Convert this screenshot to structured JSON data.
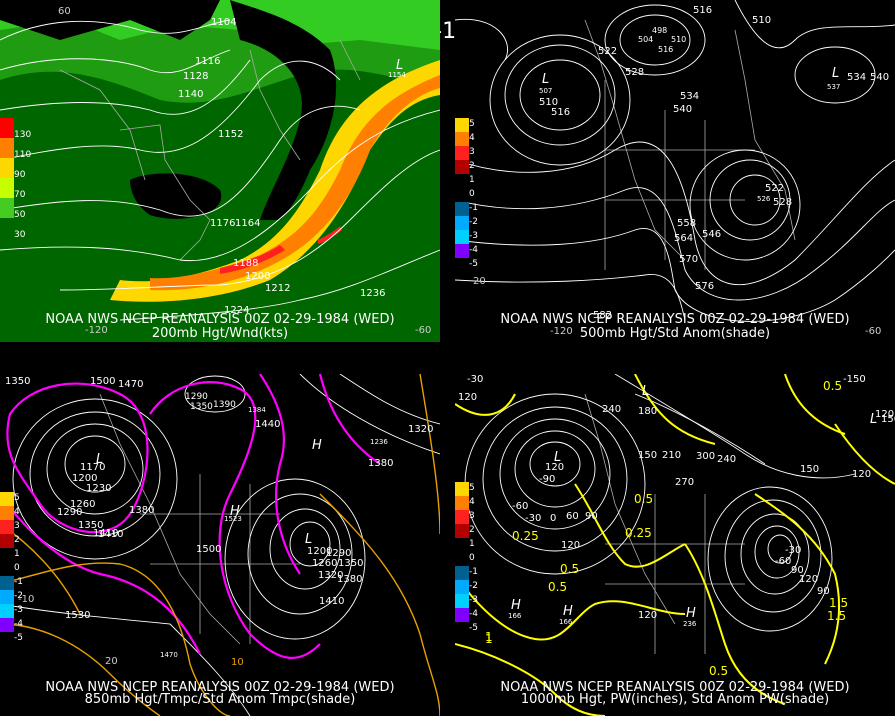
{
  "header": {
    "datetime": "00Z 02-29-1984 (WED)"
  },
  "panels": [
    {
      "id": "p1",
      "caption_line1": "NOAA NWS NCEP REANALYSIS 00Z 02-29-1984 (WED)",
      "caption_line2": "200mb Hgt/Wnd(kts)",
      "legend": [
        "130",
        "110",
        "90",
        "70",
        "50",
        "30"
      ],
      "labels": [
        "1104",
        "1116",
        "1128",
        "1140",
        "1152",
        "1164",
        "1176",
        "1188",
        "1200",
        "1212",
        "1224",
        "1236",
        "L",
        "1154",
        "60",
        "-120",
        "-60"
      ]
    },
    {
      "id": "p2",
      "caption_line1": "NOAA NWS NCEP REANALYSIS 00Z 02-29-1984 (WED)",
      "caption_line2": "500mb Hgt/Std Anom(shade)",
      "legend": [
        "5",
        "4",
        "3",
        "2",
        "1",
        "0",
        "-1",
        "-2",
        "-3",
        "-4",
        "-5"
      ],
      "labels": [
        "516",
        "510",
        "498",
        "504",
        "510",
        "516",
        "522",
        "528",
        "534",
        "540",
        "L",
        "507",
        "510",
        "516",
        "L",
        "534",
        "540",
        "537",
        "522",
        "528",
        "526",
        "558",
        "564",
        "546",
        "570",
        "576",
        "582",
        "20",
        "-120",
        "-60"
      ]
    },
    {
      "id": "p3",
      "caption_line1": "NOAA NWS NCEP REANALYSIS 00Z 02-29-1984 (WED)",
      "caption_line2": "850mb Hgt/Tmpc/Std Anom Tmpc(shade)",
      "legend": [
        "5",
        "4",
        "3",
        "2",
        "1",
        "0",
        "-1",
        "-2",
        "-3",
        "-4",
        "-5"
      ],
      "labels": [
        "1350",
        "1500",
        "1470",
        "1440",
        "1290",
        "1350",
        "1390",
        "1384",
        "1440",
        "1236",
        "1320",
        "1170",
        "1200",
        "1230",
        "1410",
        "1380",
        "1260",
        "1290",
        "1350",
        "1410",
        "1380",
        "1500",
        "1523",
        "1200",
        "1260",
        "1290",
        "1350",
        "1320",
        "1380",
        "1410",
        "1530",
        "1470",
        "10",
        "-10",
        "20",
        "H",
        "L",
        "L",
        "H"
      ]
    },
    {
      "id": "p4",
      "caption_line1": "NOAA NWS NCEP REANALYSIS 00Z 02-29-1984 (WED)",
      "caption_line2": "1000mb Hgt, PW(inches), Std Anom PW(shade)",
      "legend": [
        "5",
        "4",
        "3",
        "2",
        "1",
        "0",
        "-1",
        "-2",
        "-3",
        "-4",
        "-5"
      ],
      "labels": [
        "-30",
        "120",
        "240",
        "L",
        "180",
        "150",
        "210",
        "270",
        "300",
        "240",
        "0.5",
        "-150",
        "120",
        "150",
        "120",
        "-90",
        "-60",
        "-30",
        "0",
        "60",
        "90",
        "120",
        "0.5",
        "0.25",
        "-30",
        "-60",
        "90",
        "120",
        "1.5",
        "0.5",
        "0.25",
        "1",
        "1.5",
        "H",
        "166",
        "H",
        "166",
        "H",
        "236",
        "120",
        "0.5",
        "1",
        "L",
        "150",
        "L",
        "120",
        "0.5",
        "90"
      ]
    }
  ],
  "colors": {
    "wind_levels": [
      "#ff0000",
      "#ff7f00",
      "#ffd700",
      "#c8ff00",
      "#44cc22",
      "#006600"
    ],
    "anom_pos": [
      "#ffd700",
      "#ff7f00",
      "#ff2020",
      "#b20000"
    ],
    "anom_neg": [
      "#006090",
      "#00aaff",
      "#00d0ff",
      "#8000ff"
    ],
    "contour": "#ffffff",
    "temp": "#ff00ff",
    "pw": "#ffff00",
    "border": "#808080"
  }
}
